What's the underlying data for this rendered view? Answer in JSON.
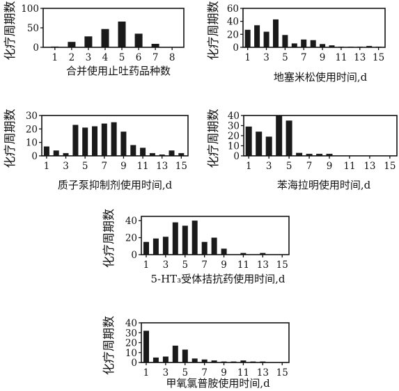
{
  "chart_data": [
    {
      "type": "bar",
      "xlabel": "合并使用止吐药品种数",
      "ylabel": "化疗周期数",
      "x": [
        1,
        2,
        3,
        4,
        5,
        6,
        7,
        8
      ],
      "values": [
        2,
        14,
        28,
        47,
        66,
        35,
        9,
        0
      ],
      "xticks": [
        1,
        2,
        3,
        4,
        5,
        6,
        7,
        8
      ],
      "yticks": [
        0,
        50,
        100
      ],
      "xlim": [
        0.3,
        8.7
      ],
      "ylim": [
        0,
        100
      ]
    },
    {
      "type": "bar",
      "xlabel": "地塞米松使用时间,d",
      "ylabel": "化疗周期数",
      "x": [
        1,
        2,
        3,
        4,
        5,
        6,
        7,
        8,
        9,
        10,
        11,
        12,
        13,
        14,
        15
      ],
      "values": [
        27,
        34,
        24,
        43,
        19,
        6,
        12,
        11,
        5,
        3,
        1,
        1,
        1,
        2,
        1
      ],
      "xticks": [
        1,
        3,
        5,
        7,
        9,
        11,
        13,
        15
      ],
      "yticks": [
        0,
        20,
        40,
        60
      ],
      "xlim": [
        0.5,
        15.7
      ],
      "ylim": [
        0,
        60
      ]
    },
    {
      "type": "bar",
      "xlabel": "质子泵抑制剂使用时间,d",
      "ylabel": "化疗周期数",
      "x": [
        1,
        2,
        3,
        4,
        5,
        6,
        7,
        8,
        9,
        10,
        11,
        12,
        13,
        14,
        15
      ],
      "values": [
        7,
        4,
        2,
        23,
        21,
        22,
        24,
        25,
        18,
        8,
        6,
        2,
        1,
        4,
        2
      ],
      "xticks": [
        1,
        3,
        5,
        7,
        9,
        11,
        13,
        15
      ],
      "yticks": [
        0,
        10,
        20,
        30
      ],
      "xlim": [
        0.5,
        15.7
      ],
      "ylim": [
        0,
        30
      ]
    },
    {
      "type": "bar",
      "xlabel": "苯海拉明使用时间,d",
      "ylabel": "化疗周期数",
      "x": [
        1,
        2,
        3,
        4,
        5,
        6,
        7,
        8,
        9,
        10,
        11,
        12,
        13,
        14,
        15
      ],
      "values": [
        29,
        24,
        19,
        40,
        35,
        3,
        2,
        2,
        2,
        0,
        0,
        0,
        0,
        0,
        0
      ],
      "xticks": [
        1,
        3,
        5,
        7,
        9,
        11,
        13,
        15
      ],
      "yticks": [
        0,
        10,
        20,
        30,
        40
      ],
      "xlim": [
        0.5,
        15.7
      ],
      "ylim": [
        0,
        40
      ]
    },
    {
      "type": "bar",
      "xlabel": "5-HT₃受体拮抗药使用时间,d",
      "ylabel": "化疗周期数",
      "x": [
        1,
        2,
        3,
        4,
        5,
        6,
        7,
        8,
        9,
        10,
        11,
        12,
        13,
        14,
        15
      ],
      "values": [
        15,
        19,
        21,
        38,
        34,
        40,
        15,
        20,
        7,
        0,
        2,
        0,
        2,
        0,
        0
      ],
      "xticks": [
        1,
        3,
        5,
        7,
        9,
        11,
        13,
        15
      ],
      "yticks": [
        0,
        20,
        40
      ],
      "xlim": [
        0.5,
        15.7
      ],
      "ylim": [
        0,
        45
      ]
    },
    {
      "type": "bar",
      "xlabel": "甲氧氯普胺使用时间,d",
      "ylabel": "化疗周期数",
      "x": [
        1,
        2,
        3,
        4,
        5,
        6,
        7,
        8,
        9,
        10,
        11,
        12,
        13,
        14,
        15
      ],
      "values": [
        32,
        5,
        6,
        17,
        13,
        4,
        3,
        2,
        1,
        1,
        2,
        1,
        1,
        0,
        0
      ],
      "xticks": [
        1,
        3,
        5,
        7,
        9,
        11,
        13,
        15
      ],
      "yticks": [
        0,
        10,
        20,
        30,
        40
      ],
      "xlim": [
        0.5,
        15.7
      ],
      "ylim": [
        0,
        40
      ]
    }
  ]
}
